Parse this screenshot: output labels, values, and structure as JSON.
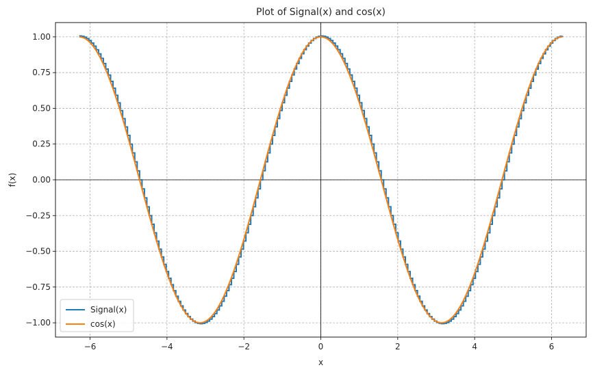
{
  "chart_data": {
    "type": "line",
    "title": "Plot of Signal(x) and cos(x)",
    "xlabel": "x",
    "ylabel": "f(x)",
    "xlim": [
      -6.9,
      6.9
    ],
    "ylim": [
      -1.1,
      1.1
    ],
    "xticks": [
      -6,
      -4,
      -2,
      0,
      2,
      4,
      6
    ],
    "xtick_labels": [
      "−6",
      "−4",
      "−2",
      "0",
      "2",
      "4",
      "6"
    ],
    "yticks": [
      -1.0,
      -0.75,
      -0.5,
      -0.25,
      0.0,
      0.25,
      0.5,
      0.75,
      1.0
    ],
    "ytick_labels": [
      "−1.00",
      "−0.75",
      "−0.50",
      "−0.25",
      "0.00",
      "0.25",
      "0.50",
      "0.75",
      "1.00"
    ],
    "grid": true,
    "legend_position": "lower-left",
    "x_range": [
      -6.283,
      6.283
    ],
    "series": [
      {
        "name": "Signal(x)",
        "function": "cos(x) with small step ripple",
        "color": "#1f77b4"
      },
      {
        "name": "cos(x)",
        "function": "cos(x)",
        "color": "#ff7f0e"
      }
    ]
  }
}
